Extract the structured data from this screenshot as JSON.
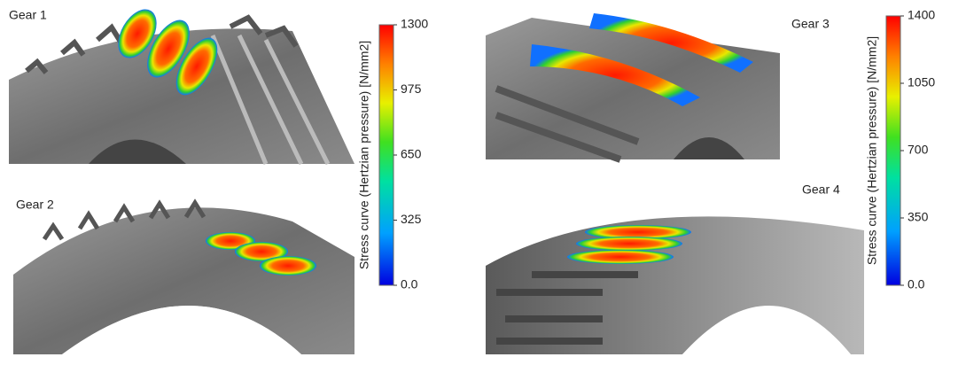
{
  "panels": [
    {
      "label": "Gear 1"
    },
    {
      "label": "Gear 2"
    },
    {
      "label": "Gear 3"
    },
    {
      "label": "Gear 4"
    }
  ],
  "colorbars": [
    {
      "title": "Stress curve (Hertzian pressure) [N/mm2]",
      "lim": [
        0,
        1300
      ],
      "ticks": [
        {
          "value": 0,
          "label": "0.0"
        },
        325,
        650,
        975,
        1300
      ]
    },
    {
      "title": "Stress curve (Hertzian pressure) [N/mm2]",
      "lim": [
        0,
        1400
      ],
      "ticks": [
        {
          "value": 0,
          "label": "0.0"
        },
        350,
        700,
        1050,
        1400
      ]
    }
  ]
}
